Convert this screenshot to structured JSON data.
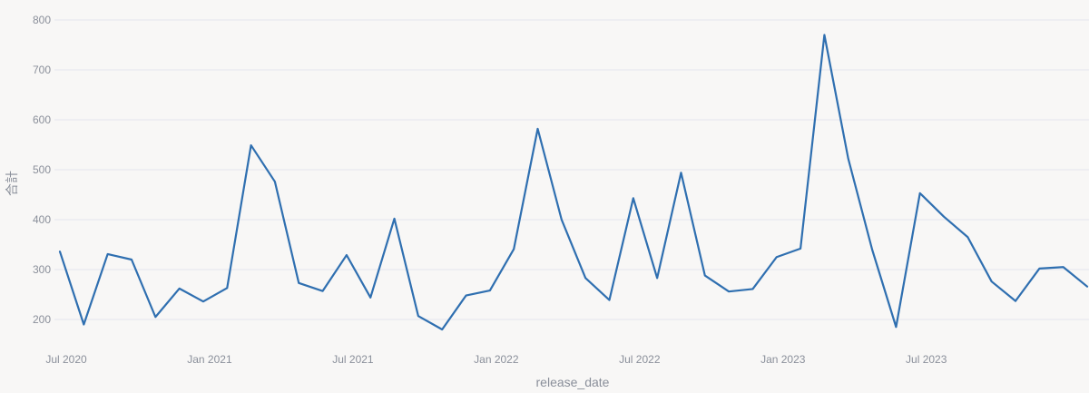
{
  "chart_data": {
    "type": "line",
    "xlabel": "release_date",
    "ylabel": "合計",
    "x_tick_labels": [
      "Jul 2020",
      "Jan 2021",
      "Jul 2021",
      "Jan 2022",
      "Jul 2022",
      "Jan 2023",
      "Jul 2023"
    ],
    "y_ticks": [
      200,
      300,
      400,
      500,
      600,
      700,
      800
    ],
    "ylim": [
      145,
      805
    ],
    "grid": true,
    "color": "#2f6fb0",
    "series": [
      {
        "x": [
          "2020-07",
          "2020-08",
          "2020-09",
          "2020-10",
          "2020-11",
          "2020-12",
          "2021-01",
          "2021-02",
          "2021-03",
          "2021-04",
          "2021-05",
          "2021-06",
          "2021-07",
          "2021-08",
          "2021-09",
          "2021-10",
          "2021-11",
          "2021-12",
          "2022-01",
          "2022-02",
          "2022-03",
          "2022-04",
          "2022-05",
          "2022-06",
          "2022-07",
          "2022-08",
          "2022-09",
          "2022-10",
          "2022-11",
          "2022-12",
          "2023-01",
          "2023-02",
          "2023-03",
          "2023-04",
          "2023-05",
          "2023-06",
          "2023-07",
          "2023-08",
          "2023-09",
          "2023-10",
          "2023-11",
          "2023-12",
          "2024-01",
          "2024-02"
        ],
        "values": [
          336,
          190,
          331,
          320,
          205,
          262,
          236,
          263,
          549,
          476,
          273,
          257,
          329,
          244,
          402,
          207,
          180,
          248,
          258,
          341,
          582,
          400,
          283,
          239,
          443,
          283,
          494,
          288,
          256,
          261,
          325,
          342,
          770,
          522,
          340,
          185,
          453,
          406,
          365,
          276,
          237,
          302,
          305,
          266
        ]
      }
    ]
  }
}
